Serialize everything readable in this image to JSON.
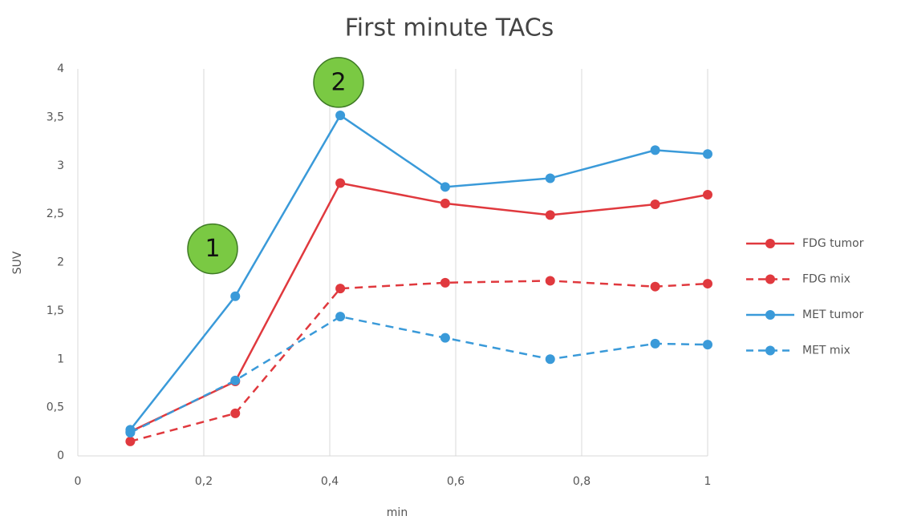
{
  "chart_data": {
    "type": "line",
    "title": "First minute TACs",
    "x_label": "min",
    "y_label": "SUV",
    "x": [
      0.0833,
      0.25,
      0.4167,
      0.5833,
      0.75,
      0.9167,
      1.0
    ],
    "series": [
      {
        "name": "FDG tumor",
        "color": "#e0393e",
        "dash": false,
        "values": [
          0.25,
          0.77,
          2.82,
          2.61,
          2.49,
          2.6,
          2.7
        ]
      },
      {
        "name": "FDG mix",
        "color": "#e0393e",
        "dash": true,
        "values": [
          0.15,
          0.44,
          1.73,
          1.79,
          1.81,
          1.75,
          1.78
        ]
      },
      {
        "name": "MET tumor",
        "color": "#3a9ad9",
        "dash": false,
        "values": [
          0.27,
          1.65,
          3.52,
          2.78,
          2.87,
          3.16,
          3.12
        ]
      },
      {
        "name": "MET mix",
        "color": "#3a9ad9",
        "dash": true,
        "values": [
          0.24,
          0.78,
          1.44,
          1.22,
          1.0,
          1.16,
          1.15
        ]
      }
    ],
    "xlim": [
      0,
      1
    ],
    "ylim": [
      0,
      4
    ],
    "xticks": [
      0,
      {
        "value": 0.2,
        "label": "0,2"
      },
      {
        "value": 0.4,
        "label": "0,4"
      },
      {
        "value": 0.6,
        "label": "0,6"
      },
      {
        "value": 0.8,
        "label": "0,8"
      },
      1
    ],
    "yticks": [
      0,
      {
        "value": 0.5,
        "label": "0,5"
      },
      1,
      {
        "value": 1.5,
        "label": "1,5"
      },
      2,
      {
        "value": 2.5,
        "label": "2,5"
      },
      3,
      {
        "value": 3.5,
        "label": "3,5"
      },
      4
    ],
    "grid": "x",
    "legend": "right",
    "annotations": [
      {
        "text": "1",
        "x": 0.214,
        "y": 2.14
      },
      {
        "text": "2",
        "x": 0.414,
        "y": 3.86
      }
    ]
  }
}
